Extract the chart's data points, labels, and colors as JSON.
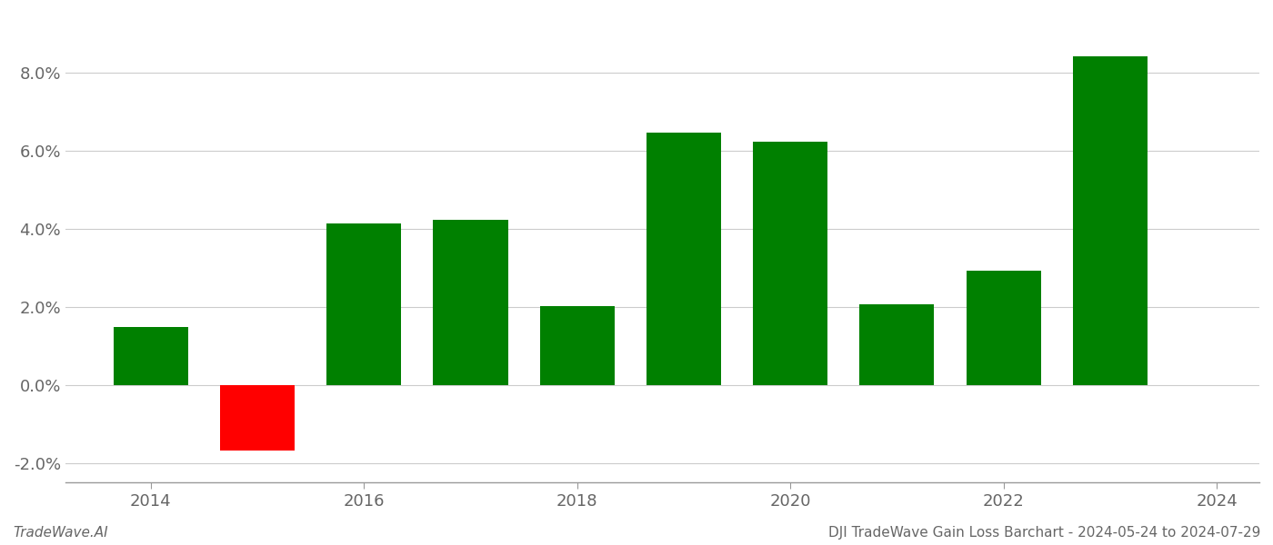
{
  "years": [
    2014,
    2015,
    2016,
    2017,
    2018,
    2019,
    2020,
    2021,
    2022,
    2023
  ],
  "values": [
    0.0148,
    -0.0168,
    0.0412,
    0.0422,
    0.0202,
    0.0645,
    0.0622,
    0.0205,
    0.0292,
    0.084
  ],
  "bar_colors": [
    "#008000",
    "#ff0000",
    "#008000",
    "#008000",
    "#008000",
    "#008000",
    "#008000",
    "#008000",
    "#008000",
    "#008000"
  ],
  "bar_width": 0.7,
  "xlim": [
    2013.2,
    2024.4
  ],
  "ylim": [
    -0.025,
    0.095
  ],
  "yticks": [
    -0.02,
    0.0,
    0.02,
    0.04,
    0.06,
    0.08
  ],
  "xtick_positions": [
    2014,
    2016,
    2018,
    2020,
    2022,
    2024
  ],
  "footer_left": "TradeWave.AI",
  "footer_right": "DJI TradeWave Gain Loss Barchart - 2024-05-24 to 2024-07-29",
  "background_color": "#ffffff",
  "grid_color": "#cccccc",
  "tick_fontsize": 13,
  "footer_fontsize": 11
}
